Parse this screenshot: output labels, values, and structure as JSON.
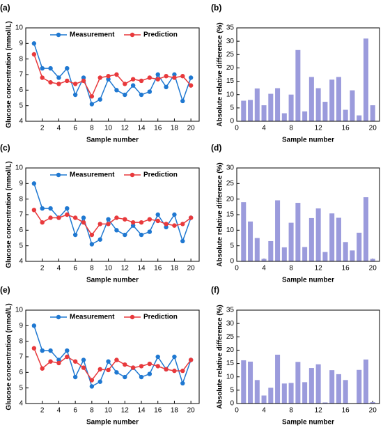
{
  "chart_data": [
    {
      "type": "line",
      "label": "(a)",
      "xlabel": "Sample number",
      "ylabel": "Glucose concentration (mmol/L)",
      "x": [
        1,
        2,
        3,
        4,
        5,
        6,
        7,
        8,
        9,
        10,
        11,
        12,
        13,
        14,
        15,
        16,
        17,
        18,
        19,
        20
      ],
      "series": [
        {
          "name": "Measurement",
          "color": "#1f78d1",
          "values": [
            9.0,
            7.4,
            7.4,
            6.8,
            7.4,
            5.7,
            6.8,
            5.1,
            5.4,
            6.7,
            6.0,
            5.7,
            6.3,
            5.7,
            5.9,
            7.0,
            6.2,
            7.0,
            5.3,
            6.8
          ]
        },
        {
          "name": "Prediction",
          "color": "#e8393c",
          "values": [
            8.3,
            6.8,
            6.5,
            6.4,
            6.6,
            6.4,
            6.6,
            5.6,
            6.8,
            6.9,
            7.0,
            6.4,
            6.7,
            6.6,
            6.8,
            6.7,
            6.9,
            6.8,
            6.9,
            6.3
          ]
        }
      ],
      "xlim": [
        0,
        21
      ],
      "ylim": [
        4,
        10
      ],
      "xticks": [
        2,
        4,
        6,
        8,
        10,
        12,
        14,
        16,
        18,
        20
      ],
      "yticks": [
        4,
        5,
        6,
        7,
        8,
        9,
        10
      ],
      "legend": "upper right"
    },
    {
      "type": "bar",
      "label": "(b)",
      "xlabel": "Sample number",
      "ylabel": "Absolute relative difference (%)",
      "x": [
        1,
        2,
        3,
        4,
        5,
        6,
        7,
        8,
        9,
        10,
        11,
        12,
        13,
        14,
        15,
        16,
        17,
        18,
        19,
        20
      ],
      "values": [
        7.7,
        8.0,
        12.3,
        6.0,
        10.3,
        12.4,
        3.0,
        10.0,
        26.7,
        3.7,
        16.6,
        12.4,
        7.3,
        15.6,
        16.6,
        4.3,
        11.6,
        2.2,
        31.0,
        6.0
      ],
      "color": "#9b9bdc",
      "xlim": [
        0,
        21
      ],
      "ylim": [
        0,
        35
      ],
      "xticks": [
        0,
        4,
        8,
        12,
        16,
        20
      ],
      "yticks": [
        0,
        5,
        10,
        15,
        20,
        25,
        30,
        35
      ]
    },
    {
      "type": "line",
      "label": "(c)",
      "xlabel": "Sample number",
      "ylabel": "Glucose concentration (mmol/L)",
      "x": [
        1,
        2,
        3,
        4,
        5,
        6,
        7,
        8,
        9,
        10,
        11,
        12,
        13,
        14,
        15,
        16,
        17,
        18,
        19,
        20
      ],
      "series": [
        {
          "name": "Measurement",
          "color": "#1f78d1",
          "values": [
            9.0,
            7.4,
            7.4,
            6.8,
            7.4,
            5.7,
            6.8,
            5.1,
            5.4,
            6.7,
            6.0,
            5.7,
            6.3,
            5.7,
            5.9,
            7.0,
            6.2,
            7.0,
            5.3,
            6.8
          ]
        },
        {
          "name": "Prediction",
          "color": "#e8393c",
          "values": [
            7.3,
            6.5,
            6.8,
            6.8,
            7.0,
            6.8,
            6.5,
            5.7,
            6.4,
            6.4,
            6.8,
            6.7,
            6.5,
            6.5,
            6.7,
            6.6,
            6.4,
            6.3,
            6.4,
            6.8
          ]
        }
      ],
      "xlim": [
        0,
        21
      ],
      "ylim": [
        4,
        10
      ],
      "xticks": [
        2,
        4,
        6,
        8,
        10,
        12,
        14,
        16,
        18,
        20
      ],
      "yticks": [
        4,
        5,
        6,
        7,
        8,
        9,
        10
      ],
      "legend": "upper right"
    },
    {
      "type": "bar",
      "label": "(d)",
      "xlabel": "Sample number",
      "ylabel": "Absolute relative difference (%)",
      "x": [
        1,
        2,
        3,
        4,
        5,
        6,
        7,
        8,
        9,
        10,
        11,
        12,
        13,
        14,
        15,
        16,
        17,
        18,
        19,
        20
      ],
      "values": [
        19.0,
        12.8,
        7.5,
        0.8,
        6.5,
        19.6,
        4.5,
        12.4,
        18.8,
        4.6,
        13.9,
        17.0,
        3.0,
        15.4,
        14.0,
        6.2,
        3.5,
        9.2,
        20.6,
        0.8
      ],
      "color": "#9b9bdc",
      "xlim": [
        0,
        21
      ],
      "ylim": [
        0,
        30
      ],
      "xticks": [
        0,
        4,
        8,
        12,
        16,
        20
      ],
      "yticks": [
        0,
        5,
        10,
        15,
        20,
        25,
        30
      ]
    },
    {
      "type": "line",
      "label": "(e)",
      "xlabel": "Sample number",
      "ylabel": "Glucose concentration (mmol/L)",
      "x": [
        1,
        2,
        3,
        4,
        5,
        6,
        7,
        8,
        9,
        10,
        11,
        12,
        13,
        14,
        15,
        16,
        17,
        18,
        19,
        20
      ],
      "series": [
        {
          "name": "Measurement",
          "color": "#1f78d1",
          "values": [
            9.0,
            7.4,
            7.4,
            6.8,
            7.4,
            5.7,
            6.8,
            5.1,
            5.4,
            6.7,
            6.0,
            5.7,
            6.3,
            5.7,
            5.9,
            7.0,
            6.2,
            7.0,
            5.3,
            6.8
          ]
        },
        {
          "name": "Prediction",
          "color": "#e8393c",
          "values": [
            7.55,
            6.25,
            6.7,
            6.6,
            7.0,
            6.7,
            6.3,
            5.5,
            6.2,
            6.15,
            6.8,
            6.5,
            6.3,
            6.4,
            6.55,
            6.4,
            6.2,
            6.1,
            6.1,
            6.8
          ]
        }
      ],
      "xlim": [
        0,
        21
      ],
      "ylim": [
        4,
        10
      ],
      "xticks": [
        2,
        4,
        6,
        8,
        10,
        12,
        14,
        16,
        18,
        20
      ],
      "yticks": [
        4,
        5,
        6,
        7,
        8,
        9,
        10
      ],
      "legend": "upper right"
    },
    {
      "type": "bar",
      "label": "(f)",
      "xlabel": "Sample number",
      "ylabel": "Absolute relative difference (%)",
      "x": [
        1,
        2,
        3,
        4,
        5,
        6,
        7,
        8,
        9,
        10,
        11,
        12,
        13,
        14,
        15,
        16,
        17,
        18,
        19,
        20
      ],
      "values": [
        16.2,
        15.7,
        8.8,
        3.0,
        5.9,
        18.3,
        7.5,
        7.7,
        15.6,
        8.0,
        13.3,
        14.7,
        0.4,
        12.5,
        11.0,
        8.8,
        0,
        12.6,
        16.5,
        0.5
      ],
      "color": "#9b9bdc",
      "xlim": [
        0,
        21
      ],
      "ylim": [
        0,
        35
      ],
      "xticks": [
        0,
        4,
        8,
        12,
        16,
        20
      ],
      "yticks": [
        0,
        5,
        10,
        15,
        20,
        25,
        30,
        35
      ]
    }
  ]
}
